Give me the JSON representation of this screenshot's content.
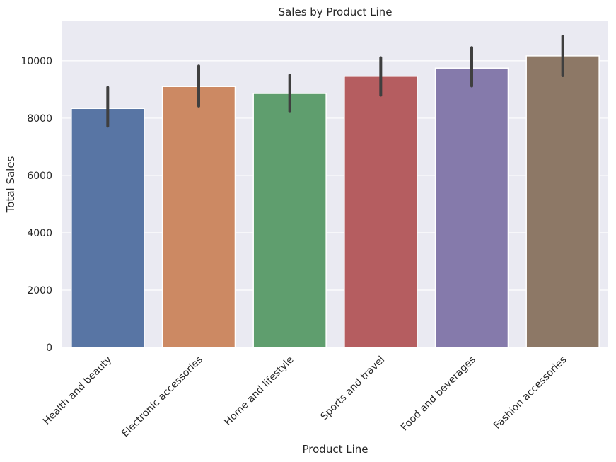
{
  "chart_data": {
    "type": "bar",
    "title": "Sales by Product Line",
    "xlabel": "Product Line",
    "ylabel": "Total Sales",
    "categories": [
      "Health and beauty",
      "Electronic accessories",
      "Home and lifestyle",
      "Sports and travel",
      "Food and beverages",
      "Fashion accessories"
    ],
    "values": [
      8337,
      9103,
      8862,
      9460,
      9745,
      10173
    ],
    "error_low": [
      7720,
      8420,
      8230,
      8800,
      9120,
      9480
    ],
    "error_high": [
      9070,
      9820,
      9500,
      10110,
      10460,
      10860
    ],
    "ylim": [
      0,
      11380
    ],
    "yticks": [
      0,
      2000,
      4000,
      6000,
      8000,
      10000
    ],
    "grid": true,
    "colors": [
      "#5875a4",
      "#cc8963",
      "#5f9e6e",
      "#b55d60",
      "#857aab",
      "#8d7866"
    ],
    "background": "#eaeaf2",
    "errorbar_color": "#3f3f3f"
  }
}
